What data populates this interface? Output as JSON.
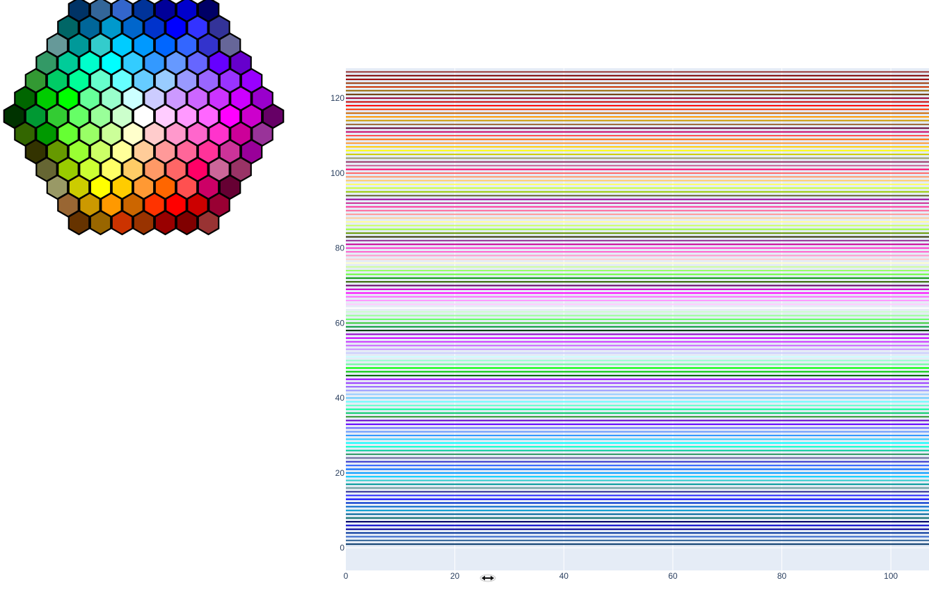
{
  "hex_picker": {
    "rows": [
      [
        "#003366",
        "#336699",
        "#3366CC",
        "#003399",
        "#000099",
        "#0000CC",
        "#000066"
      ],
      [
        "#006666",
        "#006699",
        "#0099CC",
        "#0066CC",
        "#0033CC",
        "#0000FF",
        "#3333FF",
        "#333399"
      ],
      [
        "#669999",
        "#009999",
        "#33CCCC",
        "#00CCFF",
        "#0099FF",
        "#0066FF",
        "#3366FF",
        "#3333CC",
        "#666699"
      ],
      [
        "#339966",
        "#00CC99",
        "#00FFCC",
        "#00FFFF",
        "#33CCFF",
        "#3399FF",
        "#6699FF",
        "#6666FF",
        "#6600FF",
        "#6600CC"
      ],
      [
        "#339933",
        "#00CC66",
        "#00FF99",
        "#66FFCC",
        "#66FFFF",
        "#66CCFF",
        "#99CCFF",
        "#9999FF",
        "#9966FF",
        "#9933FF",
        "#9900FF"
      ],
      [
        "#006600",
        "#00CC00",
        "#00FF00",
        "#66FF99",
        "#99FFCC",
        "#CCFFFF",
        "#CCCCFF",
        "#CC99FF",
        "#CC66FF",
        "#CC33FF",
        "#CC00FF",
        "#9900CC"
      ],
      [
        "#003300",
        "#009933",
        "#33CC33",
        "#66FF66",
        "#99FF99",
        "#CCFFCC",
        "#FFFFFF",
        "#FFCCFF",
        "#FF99FF",
        "#FF66FF",
        "#FF00FF",
        "#CC00CC",
        "#660066"
      ],
      [
        "#336600",
        "#009900",
        "#66FF33",
        "#99FF66",
        "#CCFF99",
        "#FFFFCC",
        "#FFCCCC",
        "#FF99CC",
        "#FF66CC",
        "#FF33CC",
        "#CC0099",
        "#993399"
      ],
      [
        "#333300",
        "#669900",
        "#99FF33",
        "#CCFF66",
        "#FFFF99",
        "#FFCC99",
        "#FF9999",
        "#FF6699",
        "#FF3399",
        "#CC3399",
        "#990099"
      ],
      [
        "#666633",
        "#99CC00",
        "#CCFF33",
        "#FFFF66",
        "#FFCC66",
        "#FF9966",
        "#FF6666",
        "#FF0066",
        "#CC6699",
        "#993366"
      ],
      [
        "#999966",
        "#CCCC00",
        "#FFFF00",
        "#FFCC00",
        "#FF9933",
        "#FF6600",
        "#FF5050",
        "#CC0066",
        "#660033"
      ],
      [
        "#996633",
        "#CC9900",
        "#FF9900",
        "#CC6600",
        "#FF3300",
        "#FF0000",
        "#CC0000",
        "#990033"
      ],
      [
        "#663300",
        "#996600",
        "#CC3300",
        "#993300",
        "#990000",
        "#800000",
        "#993333"
      ]
    ]
  },
  "chart_data": {
    "type": "line",
    "xlim": [
      0,
      107
    ],
    "ylim": [
      -6,
      128
    ],
    "x_ticks": [
      0,
      20,
      40,
      60,
      80,
      100
    ],
    "y_ticks": [
      0,
      20,
      40,
      60,
      80,
      100,
      120
    ],
    "grid": true,
    "series": [
      {
        "y": 1,
        "x": [
          0,
          107
        ],
        "color": "#003366"
      },
      {
        "y": 2,
        "x": [
          0,
          107
        ],
        "color": "#336699"
      },
      {
        "y": 3,
        "x": [
          0,
          107
        ],
        "color": "#3366CC"
      },
      {
        "y": 4,
        "x": [
          0,
          107
        ],
        "color": "#003399"
      },
      {
        "y": 5,
        "x": [
          0,
          107
        ],
        "color": "#000099"
      },
      {
        "y": 6,
        "x": [
          0,
          107
        ],
        "color": "#0000CC"
      },
      {
        "y": 7,
        "x": [
          0,
          107
        ],
        "color": "#000066"
      },
      {
        "y": 8,
        "x": [
          0,
          107
        ],
        "color": "#006666"
      },
      {
        "y": 9,
        "x": [
          0,
          107
        ],
        "color": "#006699"
      },
      {
        "y": 10,
        "x": [
          0,
          107
        ],
        "color": "#0099CC"
      },
      {
        "y": 11,
        "x": [
          0,
          107
        ],
        "color": "#0066CC"
      },
      {
        "y": 12,
        "x": [
          0,
          107
        ],
        "color": "#0033CC"
      },
      {
        "y": 13,
        "x": [
          0,
          107
        ],
        "color": "#0000FF"
      },
      {
        "y": 14,
        "x": [
          0,
          107
        ],
        "color": "#3333FF"
      },
      {
        "y": 15,
        "x": [
          0,
          107
        ],
        "color": "#333399"
      },
      {
        "y": 16,
        "x": [
          0,
          107
        ],
        "color": "#669999"
      },
      {
        "y": 17,
        "x": [
          0,
          107
        ],
        "color": "#009999"
      },
      {
        "y": 18,
        "x": [
          0,
          107
        ],
        "color": "#33CCCC"
      },
      {
        "y": 19,
        "x": [
          0,
          107
        ],
        "color": "#00CCFF"
      },
      {
        "y": 20,
        "x": [
          0,
          107
        ],
        "color": "#0099FF"
      },
      {
        "y": 21,
        "x": [
          0,
          107
        ],
        "color": "#0066FF"
      },
      {
        "y": 22,
        "x": [
          0,
          107
        ],
        "color": "#3366FF"
      },
      {
        "y": 23,
        "x": [
          0,
          107
        ],
        "color": "#3333CC"
      },
      {
        "y": 24,
        "x": [
          0,
          107
        ],
        "color": "#666699"
      },
      {
        "y": 25,
        "x": [
          0,
          107
        ],
        "color": "#339966"
      },
      {
        "y": 26,
        "x": [
          0,
          107
        ],
        "color": "#00CC99"
      },
      {
        "y": 27,
        "x": [
          0,
          107
        ],
        "color": "#00FFCC"
      },
      {
        "y": 28,
        "x": [
          0,
          107
        ],
        "color": "#00FFFF"
      },
      {
        "y": 29,
        "x": [
          0,
          107
        ],
        "color": "#33CCFF"
      },
      {
        "y": 30,
        "x": [
          0,
          107
        ],
        "color": "#3399FF"
      },
      {
        "y": 31,
        "x": [
          0,
          107
        ],
        "color": "#6699FF"
      },
      {
        "y": 32,
        "x": [
          0,
          107
        ],
        "color": "#6666FF"
      },
      {
        "y": 33,
        "x": [
          0,
          107
        ],
        "color": "#6600FF"
      },
      {
        "y": 34,
        "x": [
          0,
          107
        ],
        "color": "#6600CC"
      },
      {
        "y": 35,
        "x": [
          0,
          107
        ],
        "color": "#339933"
      },
      {
        "y": 36,
        "x": [
          0,
          107
        ],
        "color": "#00CC66"
      },
      {
        "y": 37,
        "x": [
          0,
          107
        ],
        "color": "#00FF99"
      },
      {
        "y": 38,
        "x": [
          0,
          107
        ],
        "color": "#66FFCC"
      },
      {
        "y": 39,
        "x": [
          0,
          107
        ],
        "color": "#66FFFF"
      },
      {
        "y": 40,
        "x": [
          0,
          107
        ],
        "color": "#66CCFF"
      },
      {
        "y": 41,
        "x": [
          0,
          107
        ],
        "color": "#99CCFF"
      },
      {
        "y": 42,
        "x": [
          0,
          107
        ],
        "color": "#9999FF"
      },
      {
        "y": 43,
        "x": [
          0,
          107
        ],
        "color": "#9966FF"
      },
      {
        "y": 44,
        "x": [
          0,
          107
        ],
        "color": "#9933FF"
      },
      {
        "y": 45,
        "x": [
          0,
          107
        ],
        "color": "#9900FF"
      },
      {
        "y": 46,
        "x": [
          0,
          107
        ],
        "color": "#006600"
      },
      {
        "y": 47,
        "x": [
          0,
          107
        ],
        "color": "#00CC00"
      },
      {
        "y": 48,
        "x": [
          0,
          107
        ],
        "color": "#00FF00"
      },
      {
        "y": 49,
        "x": [
          0,
          107
        ],
        "color": "#66FF99"
      },
      {
        "y": 50,
        "x": [
          0,
          107
        ],
        "color": "#99FFCC"
      },
      {
        "y": 51,
        "x": [
          0,
          107
        ],
        "color": "#CCFFFF"
      },
      {
        "y": 52,
        "x": [
          0,
          107
        ],
        "color": "#CCCCFF"
      },
      {
        "y": 53,
        "x": [
          0,
          107
        ],
        "color": "#CC99FF"
      },
      {
        "y": 54,
        "x": [
          0,
          107
        ],
        "color": "#CC66FF"
      },
      {
        "y": 55,
        "x": [
          0,
          107
        ],
        "color": "#CC33FF"
      },
      {
        "y": 56,
        "x": [
          0,
          107
        ],
        "color": "#CC00FF"
      },
      {
        "y": 57,
        "x": [
          0,
          107
        ],
        "color": "#9900CC"
      },
      {
        "y": 58,
        "x": [
          0,
          107
        ],
        "color": "#003300"
      },
      {
        "y": 59,
        "x": [
          0,
          107
        ],
        "color": "#009933"
      },
      {
        "y": 60,
        "x": [
          0,
          107
        ],
        "color": "#33CC33"
      },
      {
        "y": 61,
        "x": [
          0,
          107
        ],
        "color": "#66FF66"
      },
      {
        "y": 62,
        "x": [
          0,
          107
        ],
        "color": "#99FF99"
      },
      {
        "y": 63,
        "x": [
          0,
          107
        ],
        "color": "#CCFFCC"
      },
      {
        "y": 64,
        "x": [
          0,
          107
        ],
        "color": "#FFFFFF"
      },
      {
        "y": 65,
        "x": [
          0,
          107
        ],
        "color": "#FFCCFF"
      },
      {
        "y": 66,
        "x": [
          0,
          107
        ],
        "color": "#FF99FF"
      },
      {
        "y": 67,
        "x": [
          0,
          107
        ],
        "color": "#FF66FF"
      },
      {
        "y": 68,
        "x": [
          0,
          107
        ],
        "color": "#FF00FF"
      },
      {
        "y": 69,
        "x": [
          0,
          107
        ],
        "color": "#CC00CC"
      },
      {
        "y": 70,
        "x": [
          0,
          107
        ],
        "color": "#660066"
      },
      {
        "y": 71,
        "x": [
          0,
          107
        ],
        "color": "#336600"
      },
      {
        "y": 72,
        "x": [
          0,
          107
        ],
        "color": "#009900"
      },
      {
        "y": 73,
        "x": [
          0,
          107
        ],
        "color": "#66FF33"
      },
      {
        "y": 74,
        "x": [
          0,
          107
        ],
        "color": "#99FF66"
      },
      {
        "y": 75,
        "x": [
          0,
          107
        ],
        "color": "#CCFF99"
      },
      {
        "y": 76,
        "x": [
          0,
          107
        ],
        "color": "#FFFFCC"
      },
      {
        "y": 77,
        "x": [
          0,
          107
        ],
        "color": "#FFCCCC"
      },
      {
        "y": 78,
        "x": [
          0,
          107
        ],
        "color": "#FF99CC"
      },
      {
        "y": 79,
        "x": [
          0,
          107
        ],
        "color": "#FF66CC"
      },
      {
        "y": 80,
        "x": [
          0,
          107
        ],
        "color": "#FF33CC"
      },
      {
        "y": 81,
        "x": [
          0,
          107
        ],
        "color": "#CC0099"
      },
      {
        "y": 82,
        "x": [
          0,
          107
        ],
        "color": "#993399"
      },
      {
        "y": 83,
        "x": [
          0,
          107
        ],
        "color": "#333300"
      },
      {
        "y": 84,
        "x": [
          0,
          107
        ],
        "color": "#669900"
      },
      {
        "y": 85,
        "x": [
          0,
          107
        ],
        "color": "#99FF33"
      },
      {
        "y": 86,
        "x": [
          0,
          107
        ],
        "color": "#CCFF66"
      },
      {
        "y": 87,
        "x": [
          0,
          107
        ],
        "color": "#FFFF99"
      },
      {
        "y": 88,
        "x": [
          0,
          107
        ],
        "color": "#FFCC99"
      },
      {
        "y": 89,
        "x": [
          0,
          107
        ],
        "color": "#FF9999"
      },
      {
        "y": 90,
        "x": [
          0,
          107
        ],
        "color": "#FF6699"
      },
      {
        "y": 91,
        "x": [
          0,
          107
        ],
        "color": "#FF3399"
      },
      {
        "y": 92,
        "x": [
          0,
          107
        ],
        "color": "#CC3399"
      },
      {
        "y": 93,
        "x": [
          0,
          107
        ],
        "color": "#990099"
      },
      {
        "y": 94,
        "x": [
          0,
          107
        ],
        "color": "#666633"
      },
      {
        "y": 95,
        "x": [
          0,
          107
        ],
        "color": "#99CC00"
      },
      {
        "y": 96,
        "x": [
          0,
          107
        ],
        "color": "#CCFF33"
      },
      {
        "y": 97,
        "x": [
          0,
          107
        ],
        "color": "#FFFF66"
      },
      {
        "y": 98,
        "x": [
          0,
          107
        ],
        "color": "#FFCC66"
      },
      {
        "y": 99,
        "x": [
          0,
          107
        ],
        "color": "#FF9966"
      },
      {
        "y": 100,
        "x": [
          0,
          107
        ],
        "color": "#FF6666"
      },
      {
        "y": 101,
        "x": [
          0,
          107
        ],
        "color": "#FF0066"
      },
      {
        "y": 102,
        "x": [
          0,
          107
        ],
        "color": "#CC6699"
      },
      {
        "y": 103,
        "x": [
          0,
          107
        ],
        "color": "#993366"
      },
      {
        "y": 104,
        "x": [
          0,
          107
        ],
        "color": "#999966"
      },
      {
        "y": 105,
        "x": [
          0,
          107
        ],
        "color": "#CCCC00"
      },
      {
        "y": 106,
        "x": [
          0,
          107
        ],
        "color": "#FFFF00"
      },
      {
        "y": 107,
        "x": [
          0,
          107
        ],
        "color": "#FFCC00"
      },
      {
        "y": 108,
        "x": [
          0,
          107
        ],
        "color": "#FF9933"
      },
      {
        "y": 109,
        "x": [
          0,
          107
        ],
        "color": "#FF6600"
      },
      {
        "y": 110,
        "x": [
          0,
          107
        ],
        "color": "#FF5050"
      },
      {
        "y": 111,
        "x": [
          0,
          107
        ],
        "color": "#CC0066"
      },
      {
        "y": 112,
        "x": [
          0,
          107
        ],
        "color": "#660033"
      },
      {
        "y": 113,
        "x": [
          0,
          107
        ],
        "color": "#996633"
      },
      {
        "y": 114,
        "x": [
          0,
          107
        ],
        "color": "#CC9900"
      },
      {
        "y": 115,
        "x": [
          0,
          107
        ],
        "color": "#FF9900"
      },
      {
        "y": 116,
        "x": [
          0,
          107
        ],
        "color": "#CC6600"
      },
      {
        "y": 117,
        "x": [
          0,
          107
        ],
        "color": "#FF3300"
      },
      {
        "y": 118,
        "x": [
          0,
          107
        ],
        "color": "#FF0000"
      },
      {
        "y": 119,
        "x": [
          0,
          107
        ],
        "color": "#CC0000"
      },
      {
        "y": 120,
        "x": [
          0,
          107
        ],
        "color": "#990033"
      },
      {
        "y": 121,
        "x": [
          0,
          107
        ],
        "color": "#663300"
      },
      {
        "y": 122,
        "x": [
          0,
          107
        ],
        "color": "#996600"
      },
      {
        "y": 123,
        "x": [
          0,
          107
        ],
        "color": "#CC3300"
      },
      {
        "y": 124,
        "x": [
          0,
          107
        ],
        "color": "#993300"
      },
      {
        "y": 125,
        "x": [
          0,
          107
        ],
        "color": "#990000"
      },
      {
        "y": 126,
        "x": [
          0,
          107
        ],
        "color": "#800000"
      },
      {
        "y": 127,
        "x": [
          0,
          107
        ],
        "color": "#993333"
      }
    ]
  }
}
